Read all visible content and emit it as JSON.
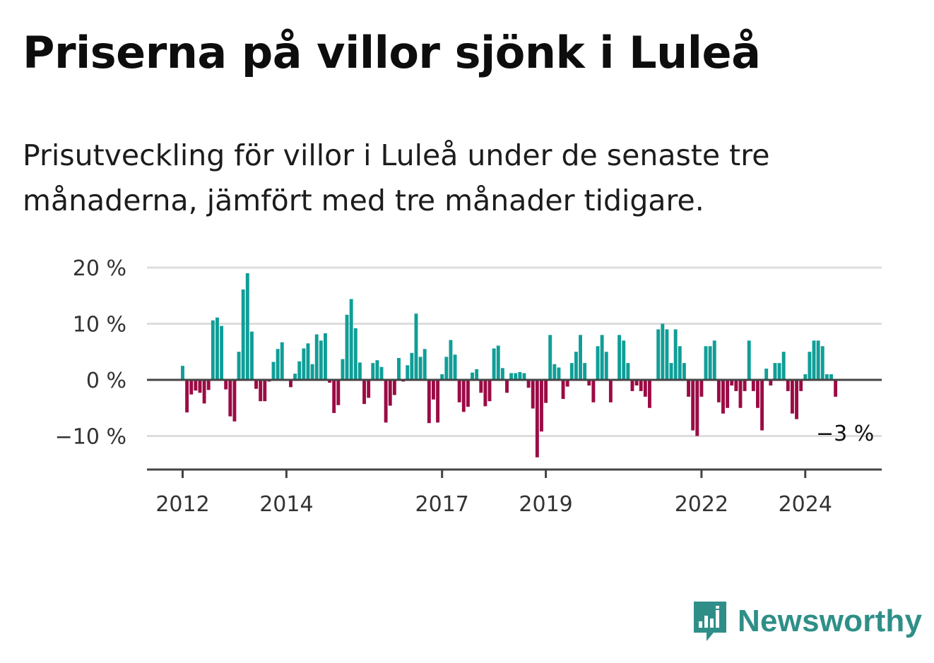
{
  "title": "Priserna på villor sjönk i Luleå",
  "subtitle": "Prisutveckling för villor i Luleå under de senaste tre månaderna, jämfört med tre månader tidigare.",
  "brand": {
    "name": "Newsworthy",
    "icon": "bar-chart-speech-bubble-icon",
    "color": "#2f8f88"
  },
  "colors": {
    "positive": "#0f9e97",
    "negative": "#9b0b45",
    "grid": "#dddddd",
    "axis": "#444444"
  },
  "chart_data": {
    "type": "bar",
    "x_start": "2012-01",
    "x_step": "month",
    "ylim": [
      -16,
      21
    ],
    "yticks": [
      {
        "value": 20,
        "label": "20 %"
      },
      {
        "value": 10,
        "label": "10 %"
      },
      {
        "value": 0,
        "label": "0 %"
      },
      {
        "value": -10,
        "label": "−10 %"
      }
    ],
    "xticks": [
      {
        "index": 0,
        "label": "2012"
      },
      {
        "index": 24,
        "label": "2014"
      },
      {
        "index": 60,
        "label": "2017"
      },
      {
        "index": 84,
        "label": "2019"
      },
      {
        "index": 120,
        "label": "2022"
      },
      {
        "index": 144,
        "label": "2024"
      }
    ],
    "grid": true,
    "annotation": {
      "text": "−3 %"
    },
    "values": [
      2.5,
      -5.8,
      -2.6,
      -1.9,
      -2.3,
      -4.2,
      -1.8,
      10.6,
      11.1,
      9.6,
      -1.7,
      -6.5,
      -7.4,
      5,
      16.1,
      19,
      8.6,
      -1.6,
      -3.8,
      -3.8,
      -0.3,
      3.2,
      5.5,
      6.7,
      0,
      -1.3,
      1.1,
      3.3,
      5.6,
      6.5,
      2.8,
      8.1,
      7,
      8.3,
      -0.5,
      -5.9,
      -4.5,
      3.7,
      11.6,
      14.4,
      9.2,
      3.1,
      -4.3,
      -3.2,
      3,
      3.5,
      2.3,
      -7.6,
      -4.6,
      -2.7,
      3.9,
      -0.3,
      2.6,
      4.8,
      11.8,
      4.1,
      5.5,
      -7.7,
      -3.5,
      -7.6,
      1,
      4.1,
      7.1,
      4.5,
      -4,
      -5.7,
      -4.8,
      1.3,
      1.9,
      -2.3,
      -4.7,
      -3.8,
      5.6,
      6.1,
      2.1,
      -2.3,
      1.2,
      1.2,
      1.4,
      1.2,
      -1.4,
      -5.1,
      -13.8,
      -9.2,
      -4.1,
      8,
      2.8,
      2.2,
      -3.4,
      -1.2,
      3,
      5,
      8,
      3,
      -1,
      -4,
      6,
      8,
      5,
      -4,
      0,
      8,
      7,
      3,
      -2,
      -1,
      -2,
      -3,
      -5,
      0,
      9,
      10,
      9,
      3,
      9,
      6,
      3,
      -3,
      -9,
      -10,
      -3,
      6,
      6,
      7,
      -4,
      -6,
      -5,
      -1,
      -2,
      -5,
      -2,
      7,
      -2,
      -5,
      -9,
      2,
      -1,
      3,
      3,
      5,
      -2,
      -6,
      -7,
      -2,
      1,
      5,
      7,
      7,
      6,
      1,
      1,
      -3
    ]
  }
}
